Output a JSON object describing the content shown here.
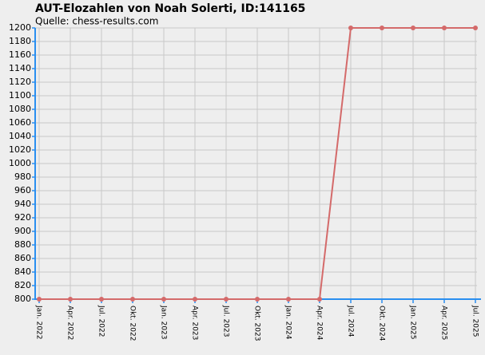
{
  "chart_data": {
    "type": "line",
    "title": "AUT-Elozahlen von Noah Solerti, ID:141165",
    "subtitle": "Quelle: chess-results.com",
    "categories": [
      "Jan. 2022",
      "Apr. 2022",
      "Jul. 2022",
      "Okt. 2022",
      "Jan. 2023",
      "Apr. 2023",
      "Jul. 2023",
      "Okt. 2023",
      "Jan. 2024",
      "Apr. 2024",
      "Jul. 2024",
      "Okt. 2024",
      "Jan. 2025",
      "Apr. 2025",
      "Jul. 2025"
    ],
    "values": [
      800,
      800,
      800,
      800,
      800,
      800,
      800,
      800,
      800,
      800,
      1200,
      1200,
      1200,
      1200,
      1200
    ],
    "color": "#d46a6a",
    "ylim": [
      800,
      1200
    ],
    "yticks": [
      800,
      820,
      840,
      860,
      880,
      900,
      920,
      940,
      960,
      980,
      1000,
      1020,
      1040,
      1060,
      1080,
      1100,
      1120,
      1140,
      1160,
      1180,
      1200
    ],
    "grid": true
  }
}
